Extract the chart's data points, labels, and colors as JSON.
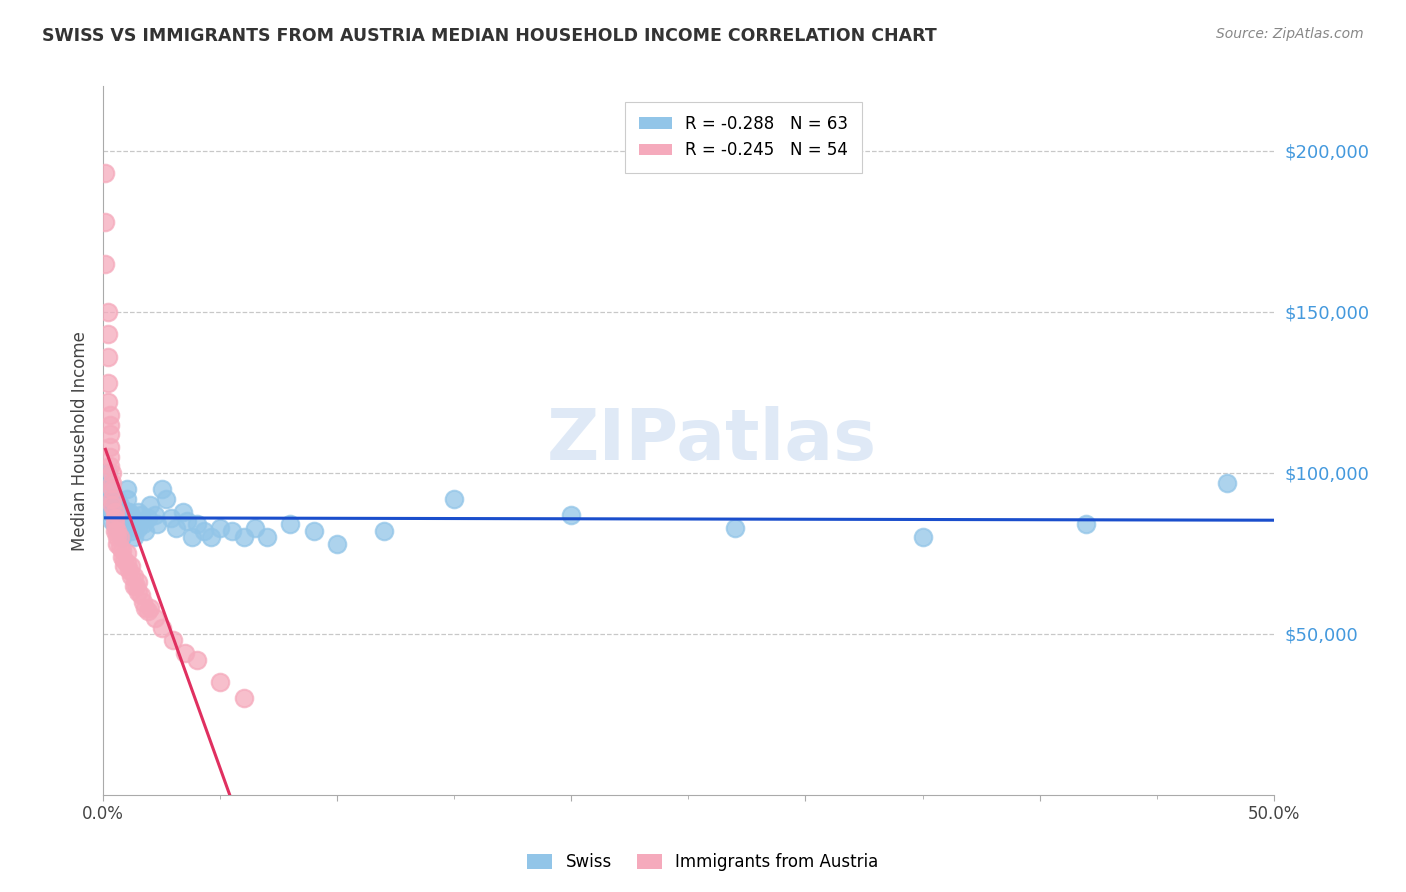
{
  "title": "SWISS VS IMMIGRANTS FROM AUSTRIA MEDIAN HOUSEHOLD INCOME CORRELATION CHART",
  "source": "Source: ZipAtlas.com",
  "ylabel": "Median Household Income",
  "ytick_labels": [
    "$50,000",
    "$100,000",
    "$150,000",
    "$200,000"
  ],
  "ytick_values": [
    50000,
    100000,
    150000,
    200000
  ],
  "ymin": 0,
  "ymax": 220000,
  "xmin": 0.0,
  "xmax": 0.5,
  "watermark": "ZIPatlas",
  "legend_swiss": "R = -0.288   N = 63",
  "legend_austria": "R = -0.245   N = 54",
  "swiss_color": "#92C5E8",
  "austria_color": "#F5AABC",
  "swiss_line_color": "#1A4ECC",
  "austria_line_color": "#E03060",
  "grid_color": "#BBBBBB",
  "background_color": "#FFFFFF",
  "swiss_x": [
    0.002,
    0.003,
    0.003,
    0.004,
    0.004,
    0.004,
    0.005,
    0.005,
    0.005,
    0.006,
    0.006,
    0.006,
    0.007,
    0.007,
    0.008,
    0.008,
    0.008,
    0.009,
    0.009,
    0.01,
    0.01,
    0.01,
    0.011,
    0.011,
    0.012,
    0.012,
    0.013,
    0.013,
    0.014,
    0.015,
    0.015,
    0.016,
    0.017,
    0.018,
    0.019,
    0.02,
    0.022,
    0.023,
    0.025,
    0.027,
    0.029,
    0.031,
    0.034,
    0.036,
    0.038,
    0.04,
    0.043,
    0.046,
    0.05,
    0.055,
    0.06,
    0.065,
    0.07,
    0.08,
    0.09,
    0.1,
    0.12,
    0.15,
    0.2,
    0.27,
    0.35,
    0.42,
    0.48
  ],
  "swiss_y": [
    100000,
    95000,
    88000,
    92000,
    85000,
    88000,
    90000,
    87000,
    84000,
    92000,
    88000,
    83000,
    90000,
    86000,
    88000,
    84000,
    80000,
    86000,
    82000,
    95000,
    92000,
    88000,
    88000,
    85000,
    87000,
    82000,
    85000,
    80000,
    84000,
    88000,
    83000,
    87000,
    84000,
    82000,
    86000,
    90000,
    87000,
    84000,
    95000,
    92000,
    86000,
    83000,
    88000,
    85000,
    80000,
    84000,
    82000,
    80000,
    83000,
    82000,
    80000,
    83000,
    80000,
    84000,
    82000,
    78000,
    82000,
    92000,
    87000,
    83000,
    80000,
    84000,
    97000
  ],
  "austria_x": [
    0.001,
    0.001,
    0.001,
    0.002,
    0.002,
    0.002,
    0.002,
    0.002,
    0.003,
    0.003,
    0.003,
    0.003,
    0.003,
    0.003,
    0.004,
    0.004,
    0.004,
    0.004,
    0.004,
    0.005,
    0.005,
    0.005,
    0.005,
    0.006,
    0.006,
    0.006,
    0.007,
    0.007,
    0.008,
    0.008,
    0.009,
    0.009,
    0.01,
    0.01,
    0.011,
    0.012,
    0.012,
    0.013,
    0.013,
    0.014,
    0.015,
    0.015,
    0.016,
    0.017,
    0.018,
    0.019,
    0.02,
    0.022,
    0.025,
    0.03,
    0.035,
    0.04,
    0.05,
    0.06
  ],
  "austria_y": [
    193000,
    178000,
    165000,
    150000,
    143000,
    136000,
    128000,
    122000,
    118000,
    115000,
    112000,
    108000,
    105000,
    102000,
    100000,
    97000,
    95000,
    92000,
    90000,
    88000,
    86000,
    84000,
    82000,
    82000,
    80000,
    78000,
    80000,
    77000,
    76000,
    74000,
    73000,
    71000,
    75000,
    72000,
    70000,
    71000,
    68000,
    68000,
    65000,
    65000,
    66000,
    63000,
    62000,
    60000,
    58000,
    57000,
    58000,
    55000,
    52000,
    48000,
    44000,
    42000,
    35000,
    30000
  ]
}
